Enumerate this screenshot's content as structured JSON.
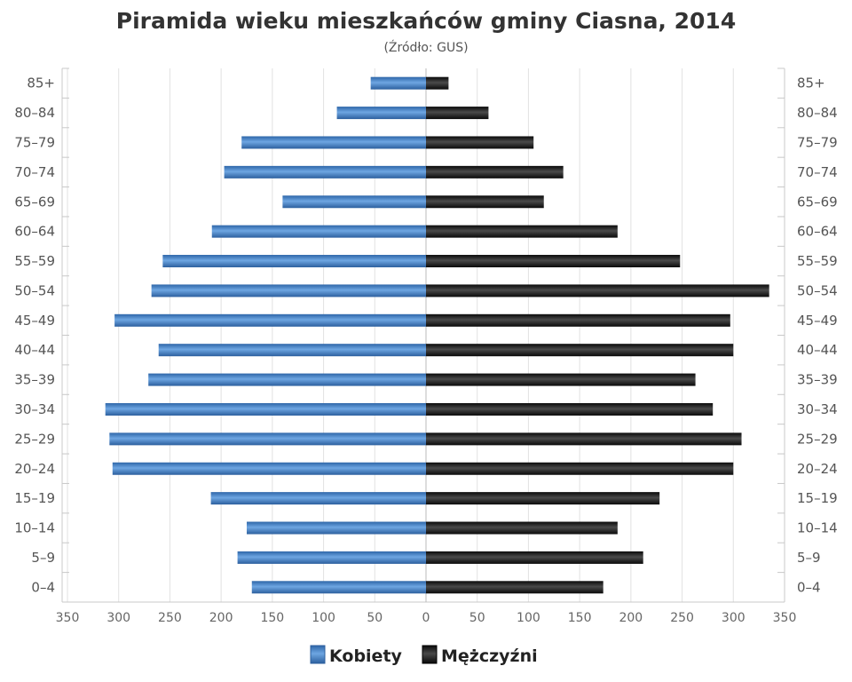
{
  "chart_data": {
    "type": "bar",
    "orientation": "horizontal",
    "layout": "population-pyramid",
    "title": "Piramida wieku mieszkańców gminy Ciasna, 2014",
    "subtitle": "(Źródło: GUS)",
    "categories": [
      "0–4",
      "5–9",
      "10–14",
      "15–19",
      "20–24",
      "25–29",
      "30–34",
      "35–39",
      "40–44",
      "45–49",
      "50–54",
      "55–59",
      "60–64",
      "65–69",
      "70–74",
      "75–79",
      "80–84",
      "85+"
    ],
    "series": [
      {
        "name": "Kobiety",
        "side": "left",
        "color": "#3a78be",
        "values": [
          170,
          184,
          175,
          210,
          306,
          309,
          313,
          271,
          261,
          304,
          268,
          257,
          209,
          140,
          197,
          180,
          87,
          54
        ]
      },
      {
        "name": "Mężczyźni",
        "side": "right",
        "color": "#1a1a1a",
        "values": [
          173,
          212,
          187,
          228,
          300,
          308,
          280,
          263,
          300,
          297,
          335,
          248,
          187,
          115,
          134,
          105,
          61,
          22
        ]
      }
    ],
    "xlim": [
      -350,
      350
    ],
    "x_ticks": [
      "350",
      "300",
      "250",
      "200",
      "150",
      "100",
      "50",
      "0",
      "50",
      "100",
      "150",
      "200",
      "250",
      "300",
      "350"
    ],
    "grid": true,
    "legend_position": "bottom-center"
  }
}
